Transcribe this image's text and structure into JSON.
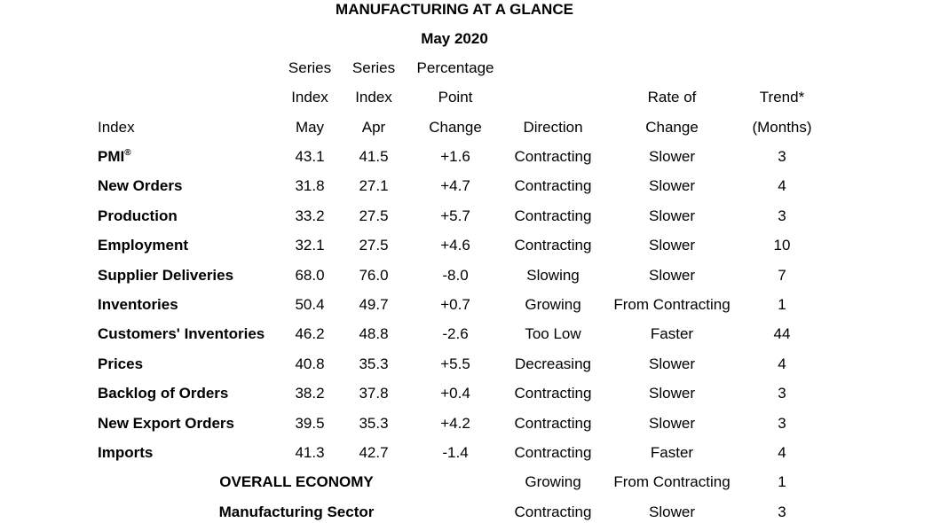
{
  "title": "MANUFACTURING AT A GLANCE",
  "subtitle": "May 2020",
  "headers": {
    "series_index_may": [
      "Series",
      "Index",
      "May"
    ],
    "series_index_apr": [
      "Series",
      "Index",
      "Apr"
    ],
    "pct_point_change": [
      "Percentage",
      "Point",
      "Change"
    ],
    "index": "Index",
    "direction": "Direction",
    "rate_of_change": [
      "Rate of",
      "Change"
    ],
    "trend": [
      "Trend*",
      "(Months)"
    ]
  },
  "rows": [
    {
      "index": "PMI",
      "sup": "®",
      "may": "43.1",
      "apr": "41.5",
      "change": "+1.6",
      "direction": "Contracting",
      "rate": "Slower",
      "trend": "3"
    },
    {
      "index": "New Orders",
      "may": "31.8",
      "apr": "27.1",
      "change": "+4.7",
      "direction": "Contracting",
      "rate": "Slower",
      "trend": "4"
    },
    {
      "index": "Production",
      "may": "33.2",
      "apr": "27.5",
      "change": "+5.7",
      "direction": "Contracting",
      "rate": "Slower",
      "trend": "3"
    },
    {
      "index": "Employment",
      "may": "32.1",
      "apr": "27.5",
      "change": "+4.6",
      "direction": "Contracting",
      "rate": "Slower",
      "trend": "10"
    },
    {
      "index": "Supplier Deliveries",
      "may": "68.0",
      "apr": "76.0",
      "change": "-8.0",
      "direction": "Slowing",
      "rate": "Slower",
      "trend": "7"
    },
    {
      "index": "Inventories",
      "may": "50.4",
      "apr": "49.7",
      "change": "+0.7",
      "direction": "Growing",
      "rate": "From Contracting",
      "trend": "1"
    },
    {
      "index": "Customers' Inventories",
      "may": "46.2",
      "apr": "48.8",
      "change": "-2.6",
      "direction": "Too Low",
      "rate": "Faster",
      "trend": "44"
    },
    {
      "index": "Prices",
      "may": "40.8",
      "apr": "35.3",
      "change": "+5.5",
      "direction": "Decreasing",
      "rate": "Slower",
      "trend": "4"
    },
    {
      "index": "Backlog of Orders",
      "may": "38.2",
      "apr": "37.8",
      "change": "+0.4",
      "direction": "Contracting",
      "rate": "Slower",
      "trend": "3"
    },
    {
      "index": "New Export Orders",
      "may": "39.5",
      "apr": "35.3",
      "change": "+4.2",
      "direction": "Contracting",
      "rate": "Slower",
      "trend": "3"
    },
    {
      "index": "Imports",
      "may": "41.3",
      "apr": "42.7",
      "change": "-1.4",
      "direction": "Contracting",
      "rate": "Faster",
      "trend": "4"
    }
  ],
  "overall_rows": [
    {
      "index": "OVERALL ECONOMY",
      "direction": "Growing",
      "rate": "From Contracting",
      "trend": "1"
    },
    {
      "index": "Manufacturing Sector",
      "direction": "Contracting",
      "rate": "Slower",
      "trend": "3"
    }
  ]
}
